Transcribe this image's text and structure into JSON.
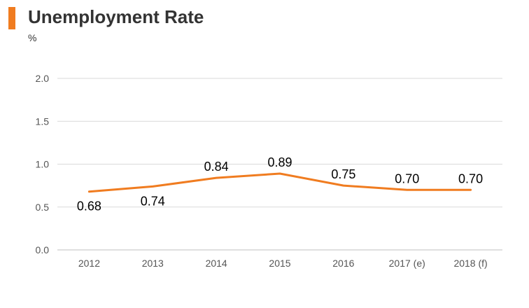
{
  "page": {
    "title": "Unemployment Rate",
    "unit_label": "%"
  },
  "colors": {
    "accent": "#f07c20",
    "line": "#f07c20",
    "grid": "#d9d9d9",
    "axis": "#bfbfbf",
    "text": "#333333",
    "tick_text": "#555555",
    "data_label": "#000000"
  },
  "chart_data": {
    "type": "line",
    "title": "Unemployment Rate",
    "ylabel": "%",
    "xlabel": "",
    "categories": [
      "2012",
      "2013",
      "2014",
      "2015",
      "2016",
      "2017 (e)",
      "2018 (f)"
    ],
    "series": [
      {
        "values": [
          0.68,
          0.74,
          0.84,
          0.89,
          0.75,
          0.7,
          0.7
        ]
      }
    ],
    "data_labels": [
      "0.68",
      "0.74",
      "0.84",
      "0.89",
      "0.75",
      "0.70",
      "0.70"
    ],
    "ylim": [
      0.0,
      2.0
    ],
    "yticks": [
      "0.0",
      "0.5",
      "1.0",
      "1.5",
      "2.0"
    ],
    "grid": true,
    "legend": "none"
  }
}
